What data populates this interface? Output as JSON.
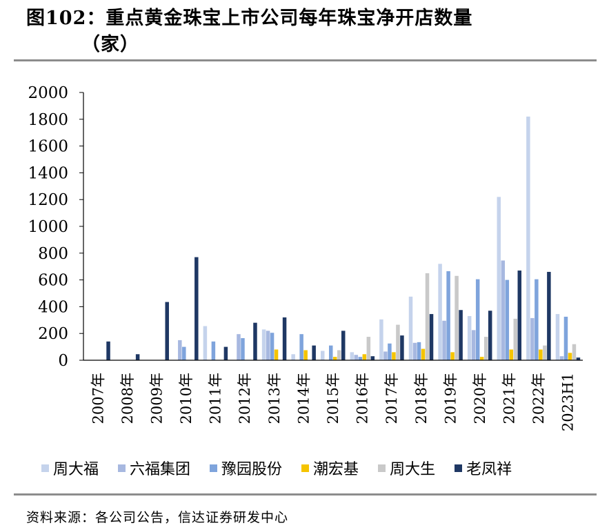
{
  "header": {
    "title_line1": "图102：重点黄金珠宝上市公司每年珠宝净开店数量",
    "title_line2": "（家）"
  },
  "footer": {
    "source": "资料来源：各公司公告，信达证券研发中心"
  },
  "chart_data": {
    "type": "bar",
    "title": "重点黄金珠宝上市公司每年珠宝净开店数量（家）",
    "ylim": [
      0,
      2000
    ],
    "yticks": [
      0,
      200,
      400,
      600,
      800,
      1000,
      1200,
      1400,
      1600,
      1800,
      2000
    ],
    "categories": [
      "2007年",
      "2008年",
      "2009年",
      "2010年",
      "2011年",
      "2012年",
      "2013年",
      "2014年",
      "2015年",
      "2016年",
      "2017年",
      "2018年",
      "2019年",
      "2020年",
      "2021年",
      "2022年",
      "2023H1"
    ],
    "series": [
      {
        "name": "周大福",
        "color": "#c5d3ec",
        "values": [
          0,
          0,
          0,
          0,
          255,
          0,
          230,
          45,
          70,
          60,
          305,
          475,
          720,
          330,
          1220,
          1820,
          345
        ]
      },
      {
        "name": "六福集团",
        "color": "#a7b8e0",
        "values": [
          0,
          0,
          0,
          150,
          0,
          195,
          220,
          0,
          0,
          40,
          65,
          130,
          295,
          225,
          745,
          315,
          30
        ]
      },
      {
        "name": "豫园股份",
        "color": "#7fa4dc",
        "values": [
          0,
          0,
          0,
          100,
          140,
          165,
          205,
          195,
          110,
          25,
          125,
          135,
          665,
          605,
          600,
          605,
          325
        ]
      },
      {
        "name": "潮宏基",
        "color": "#f5c400",
        "values": [
          0,
          0,
          0,
          0,
          0,
          0,
          80,
          75,
          25,
          45,
          60,
          85,
          60,
          25,
          80,
          80,
          55
        ]
      },
      {
        "name": "周大生",
        "color": "#c9c9c9",
        "values": [
          0,
          0,
          0,
          0,
          0,
          0,
          0,
          0,
          75,
          175,
          265,
          650,
          630,
          175,
          310,
          110,
          120
        ]
      },
      {
        "name": "老凤祥",
        "color": "#1f3864",
        "values": [
          140,
          45,
          435,
          770,
          100,
          280,
          320,
          110,
          220,
          30,
          185,
          345,
          375,
          370,
          670,
          660,
          20
        ]
      }
    ]
  }
}
